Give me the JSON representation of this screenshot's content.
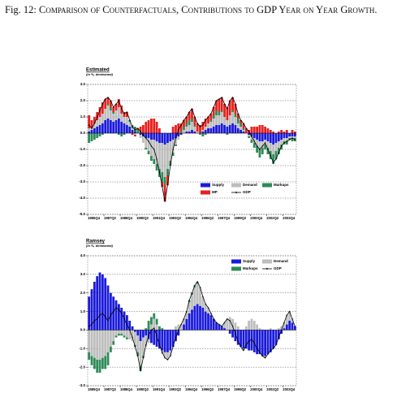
{
  "caption": {
    "label": "Fig. 12:",
    "text": "Comparison of Counterfactuals, Contributions to GDP Year on Year Growth."
  },
  "chart_data": [
    {
      "type": "bar",
      "title": "Estimated",
      "subtitle": "(in %, demeaned)",
      "stacked": true,
      "grid": true,
      "legend_position": "lower right",
      "categories": [
        "1985Q4",
        null,
        null,
        null,
        null,
        null,
        "1987Q2",
        null,
        null,
        null,
        null,
        null,
        "1988Q4",
        null,
        null,
        null,
        null,
        null,
        "1990Q2",
        null,
        null,
        null,
        null,
        null,
        "1991Q4",
        null,
        null,
        null,
        null,
        null,
        "1993Q2",
        null,
        null,
        null,
        null,
        null,
        "1994Q4",
        null,
        null,
        null,
        null,
        null,
        "1996Q2",
        null,
        null,
        null,
        null,
        null,
        "1997Q4",
        null,
        null,
        null,
        null,
        null,
        "1999Q2",
        null,
        null,
        null,
        null,
        null,
        "2000Q4",
        null,
        null,
        null,
        null,
        null,
        "2002Q2",
        null,
        null,
        null,
        null,
        null,
        "2003Q4",
        null,
        null,
        null,
        null
      ],
      "ylim": [
        -5,
        3
      ],
      "yticks": [
        {
          "value": 3,
          "label": "3.0"
        },
        {
          "value": 2,
          "label": "2.0"
        },
        {
          "value": 1,
          "label": "1.0"
        },
        {
          "value": 0,
          "label": "0.0"
        },
        {
          "value": -1,
          "label": "-1.0"
        },
        {
          "value": -2,
          "label": "-2.0"
        },
        {
          "value": -3,
          "label": "-3.0"
        },
        {
          "value": -4,
          "label": "-4.0"
        },
        {
          "value": -5,
          "label": "-5.0"
        }
      ],
      "series": [
        {
          "name": "Supply",
          "color": "#1a1adc",
          "values": [
            0.1,
            0.2,
            0.3,
            0.4,
            0.5,
            0.6,
            0.8,
            0.9,
            0.8,
            0.7,
            0.8,
            0.9,
            0.7,
            0.6,
            0.5,
            0.4,
            0.2,
            0.1,
            0.0,
            -0.1,
            -0.2,
            -0.3,
            -0.3,
            -0.4,
            -0.4,
            -0.5,
            -0.6,
            -0.6,
            -0.7,
            -0.6,
            -0.5,
            -0.4,
            -0.3,
            -0.2,
            -0.1,
            0.0,
            0.1,
            0.1,
            0.2,
            0.1,
            0.0,
            0.0,
            0.1,
            0.2,
            0.3,
            0.3,
            0.4,
            0.5,
            0.5,
            0.6,
            0.5,
            0.4,
            0.5,
            0.6,
            0.5,
            0.3,
            0.2,
            0.1,
            0.0,
            -0.1,
            -0.2,
            -0.3,
            -0.4,
            -0.5,
            -0.5,
            -0.4,
            -0.5,
            -0.6,
            -0.7,
            -0.6,
            -0.5,
            -0.4,
            -0.3,
            -0.3,
            -0.2,
            -0.2,
            -0.2
          ]
        },
        {
          "name": "Demand",
          "color": "#bdbdbd",
          "values": [
            0.2,
            0.1,
            0.3,
            0.4,
            0.5,
            0.6,
            0.7,
            0.8,
            0.6,
            0.5,
            0.6,
            0.7,
            0.5,
            0.4,
            0.5,
            0.3,
            0.1,
            -0.1,
            0.0,
            -0.2,
            -0.4,
            -0.6,
            -0.8,
            -1.0,
            -1.2,
            -1.4,
            -1.6,
            -1.8,
            -2.0,
            -1.6,
            -1.2,
            -0.8,
            -0.4,
            -0.2,
            0.0,
            0.2,
            0.3,
            0.4,
            0.5,
            0.3,
            0.1,
            0.0,
            0.1,
            0.2,
            0.3,
            0.4,
            0.5,
            0.6,
            0.6,
            0.7,
            0.5,
            0.4,
            0.6,
            0.7,
            0.5,
            0.3,
            0.2,
            0.1,
            0.0,
            -0.1,
            -0.2,
            -0.3,
            -0.4,
            -0.5,
            -0.4,
            -0.3,
            -0.4,
            -0.5,
            -0.6,
            -0.5,
            -0.4,
            -0.3,
            -0.2,
            -0.2,
            -0.1,
            -0.1,
            -0.1
          ]
        },
        {
          "name": "Markups",
          "color": "#2e8b57",
          "values": [
            -0.6,
            -0.5,
            -0.4,
            -0.3,
            -0.2,
            -0.1,
            0.0,
            0.1,
            0.2,
            0.1,
            0.0,
            -0.1,
            -0.2,
            -0.1,
            0.0,
            0.1,
            0.2,
            0.3,
            0.2,
            0.1,
            0.0,
            -0.1,
            -0.2,
            -0.3,
            -0.3,
            -0.4,
            -0.5,
            -0.6,
            -0.5,
            -0.4,
            -0.3,
            -0.2,
            -0.1,
            0.0,
            0.1,
            0.2,
            0.2,
            0.3,
            0.2,
            0.1,
            0.0,
            -0.1,
            -0.2,
            -0.1,
            0.0,
            0.1,
            0.2,
            0.3,
            0.2,
            0.1,
            0.0,
            -0.1,
            0.0,
            0.1,
            0.2,
            0.3,
            0.2,
            0.1,
            0.0,
            -0.1,
            -0.2,
            -0.3,
            -0.4,
            -0.5,
            -0.4,
            -0.3,
            -0.4,
            -0.5,
            -0.6,
            -0.5,
            -0.4,
            -0.3,
            -0.2,
            -0.2,
            -0.1,
            -0.2,
            -0.2
          ]
        },
        {
          "name": "MP",
          "color": "#e8201e",
          "values": [
            0.8,
            0.5,
            0.4,
            0.5,
            0.6,
            0.7,
            0.6,
            0.4,
            0.4,
            0.3,
            0.4,
            0.5,
            0.5,
            0.3,
            0.3,
            0.0,
            -0.1,
            -0.1,
            0.1,
            0.3,
            0.5,
            0.7,
            0.8,
            0.9,
            0.9,
            0.7,
            0.3,
            -0.3,
            -1.0,
            -0.6,
            0.0,
            0.4,
            0.5,
            0.6,
            0.5,
            0.4,
            0.4,
            0.5,
            0.6,
            0.5,
            0.5,
            0.5,
            0.5,
            0.5,
            0.4,
            0.4,
            0.5,
            0.6,
            0.8,
            0.8,
            0.8,
            0.8,
            0.9,
            0.8,
            0.6,
            0.3,
            0.2,
            0.3,
            0.3,
            0.2,
            0.4,
            0.4,
            0.4,
            0.5,
            0.5,
            0.4,
            0.3,
            0.2,
            0.1,
            0.0,
            0.1,
            0.2,
            0.1,
            0.2,
            0.0,
            0.2,
            0.1
          ]
        },
        {
          "name": "GDP",
          "color": "#000000",
          "type": "line",
          "values": [
            0.5,
            0.3,
            0.6,
            1.0,
            1.4,
            1.8,
            2.1,
            2.2,
            2.0,
            1.6,
            1.8,
            2.0,
            1.5,
            1.2,
            1.3,
            0.8,
            0.4,
            0.2,
            0.3,
            0.1,
            -0.1,
            -0.3,
            -0.5,
            -0.8,
            -1.0,
            -1.6,
            -2.4,
            -3.3,
            -4.2,
            -3.2,
            -2.0,
            -1.0,
            -0.3,
            0.2,
            0.5,
            0.8,
            1.0,
            1.3,
            1.5,
            1.0,
            0.6,
            0.4,
            0.5,
            0.8,
            1.0,
            1.2,
            1.6,
            2.0,
            2.1,
            2.2,
            1.8,
            1.5,
            2.0,
            2.2,
            1.8,
            1.2,
            0.8,
            0.6,
            0.3,
            0.1,
            -0.2,
            -0.5,
            -0.8,
            -1.0,
            -0.8,
            -0.6,
            -1.0,
            -1.4,
            -1.8,
            -1.6,
            -1.2,
            -0.8,
            -0.6,
            -0.5,
            -0.4,
            -0.3,
            -0.4
          ]
        }
      ]
    },
    {
      "type": "bar",
      "title": "Ramsey",
      "subtitle": "(in %, demeaned)",
      "stacked": true,
      "grid": true,
      "legend_position": "upper right",
      "categories": [
        "1985Q4",
        null,
        null,
        null,
        null,
        null,
        "1987Q2",
        null,
        null,
        null,
        null,
        null,
        "1988Q4",
        null,
        null,
        null,
        null,
        null,
        "1990Q2",
        null,
        null,
        null,
        null,
        null,
        "1991Q4",
        null,
        null,
        null,
        null,
        null,
        "1993Q2",
        null,
        null,
        null,
        null,
        null,
        "1994Q4",
        null,
        null,
        null,
        null,
        null,
        "1996Q2",
        null,
        null,
        null,
        null,
        null,
        "1997Q4",
        null,
        null,
        null,
        null,
        null,
        "1999Q2",
        null,
        null,
        null,
        null,
        null,
        "2000Q4",
        null,
        null,
        null,
        null,
        null,
        "2002Q2",
        null,
        null,
        null,
        null,
        null,
        "2003Q4",
        null,
        null,
        null,
        null
      ],
      "ylim": [
        -3,
        4
      ],
      "yticks": [
        {
          "value": 4,
          "label": "4.0"
        },
        {
          "value": 3,
          "label": "3.0"
        },
        {
          "value": 2,
          "label": "2.0"
        },
        {
          "value": 1,
          "label": "1.0"
        },
        {
          "value": 0,
          "label": "0.0"
        },
        {
          "value": -1,
          "label": "-1.0"
        },
        {
          "value": -2,
          "label": "-2.0"
        },
        {
          "value": -3,
          "label": "-3.0"
        }
      ],
      "series": [
        {
          "name": "Supply",
          "color": "#1a1adc",
          "values": [
            1.8,
            2.2,
            2.6,
            2.9,
            3.1,
            3.0,
            2.8,
            2.4,
            2.0,
            1.8,
            1.6,
            1.4,
            1.2,
            1.0,
            0.8,
            0.5,
            0.2,
            -0.1,
            -0.3,
            -0.6,
            -0.4,
            -0.3,
            -0.5,
            -0.7,
            -0.8,
            -0.9,
            -1.0,
            -1.1,
            -1.2,
            -1.2,
            -1.1,
            -0.9,
            -0.6,
            -0.3,
            0.0,
            0.3,
            0.6,
            0.9,
            1.1,
            1.3,
            1.4,
            1.3,
            1.2,
            1.0,
            0.9,
            0.8,
            0.6,
            0.4,
            0.3,
            0.2,
            0.1,
            0.0,
            -0.2,
            -0.4,
            -0.6,
            -0.8,
            -0.9,
            -1.0,
            -1.0,
            -1.1,
            -1.1,
            -1.2,
            -1.3,
            -1.3,
            -1.4,
            -1.4,
            -1.3,
            -1.2,
            -1.0,
            -0.8,
            -0.5,
            -0.2,
            0.1,
            0.3,
            0.5,
            0.4,
            0.2
          ]
        },
        {
          "name": "Demand",
          "color": "#bdbdbd",
          "values": [
            -1.2,
            -1.4,
            -1.5,
            -1.6,
            -1.6,
            -1.5,
            -1.4,
            -1.2,
            -0.9,
            -0.6,
            -0.3,
            -0.2,
            -0.2,
            -0.3,
            -0.4,
            -0.5,
            -0.6,
            -0.7,
            -0.9,
            -1.3,
            -1.0,
            -0.6,
            -0.2,
            0.3,
            0.6,
            0.3,
            0.0,
            -0.2,
            -0.3,
            -0.4,
            -0.3,
            0.0,
            0.2,
            0.3,
            0.3,
            0.3,
            0.4,
            0.6,
            0.8,
            1.0,
            1.1,
            1.0,
            0.6,
            0.4,
            0.3,
            0.1,
            0.0,
            0.0,
            0.0,
            0.0,
            0.3,
            0.6,
            0.7,
            0.6,
            0.4,
            0.2,
            0.0,
            -0.1,
            0.2,
            0.5,
            0.6,
            0.5,
            0.3,
            0.1,
            0.0,
            -0.1,
            0.0,
            0.1,
            0.0,
            0.0,
            0.1,
            0.2,
            0.3,
            0.5,
            0.5,
            0.2,
            0.0
          ]
        },
        {
          "name": "Markups",
          "color": "#2e8b57",
          "values": [
            -0.4,
            -0.5,
            -0.6,
            -0.7,
            -0.7,
            -0.6,
            -0.7,
            -0.7,
            -0.3,
            -0.2,
            -0.1,
            -0.1,
            -0.1,
            -0.1,
            -0.1,
            0.0,
            0.0,
            -0.1,
            -0.2,
            -0.3,
            -0.1,
            0.1,
            0.5,
            0.4,
            0.3,
            0.3,
            0.2,
            0.1,
            0.0,
            0.0,
            0.0,
            0.0,
            0.0,
            0.0,
            0.0,
            0.0,
            0.0,
            0.1,
            0.1,
            0.1,
            0.1,
            0.0,
            0.0,
            0.0,
            0.0,
            0.0,
            0.0,
            0.0,
            0.0,
            0.0,
            0.0,
            0.0,
            0.0,
            0.0,
            0.0,
            0.0,
            0.0,
            0.0,
            0.0,
            0.0,
            0.0,
            0.0,
            0.0,
            0.0,
            0.0,
            0.0,
            0.0,
            0.0,
            0.0,
            0.0,
            0.0,
            0.0,
            0.0,
            0.0,
            0.0,
            0.0,
            0.0
          ]
        },
        {
          "name": "GDP",
          "color": "#000000",
          "type": "line",
          "values": [
            0.2,
            0.3,
            0.5,
            0.6,
            0.8,
            0.9,
            0.7,
            0.5,
            0.8,
            1.0,
            1.2,
            1.1,
            0.9,
            0.6,
            0.3,
            0.0,
            -0.4,
            -0.9,
            -1.4,
            -2.2,
            -1.5,
            -0.8,
            -0.3,
            0.0,
            0.1,
            -0.3,
            -0.8,
            -1.2,
            -1.5,
            -1.6,
            -1.4,
            -0.9,
            -0.4,
            0.0,
            0.3,
            0.6,
            1.0,
            1.6,
            2.0,
            2.4,
            2.6,
            2.3,
            1.8,
            1.4,
            1.2,
            0.9,
            0.6,
            0.4,
            0.3,
            0.2,
            0.4,
            0.6,
            0.5,
            0.2,
            -0.2,
            -0.6,
            -0.9,
            -1.1,
            -0.8,
            -0.6,
            -0.5,
            -0.7,
            -1.0,
            -1.2,
            -1.4,
            -1.5,
            -1.3,
            -1.1,
            -1.0,
            -0.8,
            -0.4,
            0.0,
            0.4,
            0.8,
            1.0,
            0.6,
            0.2
          ]
        }
      ]
    }
  ]
}
